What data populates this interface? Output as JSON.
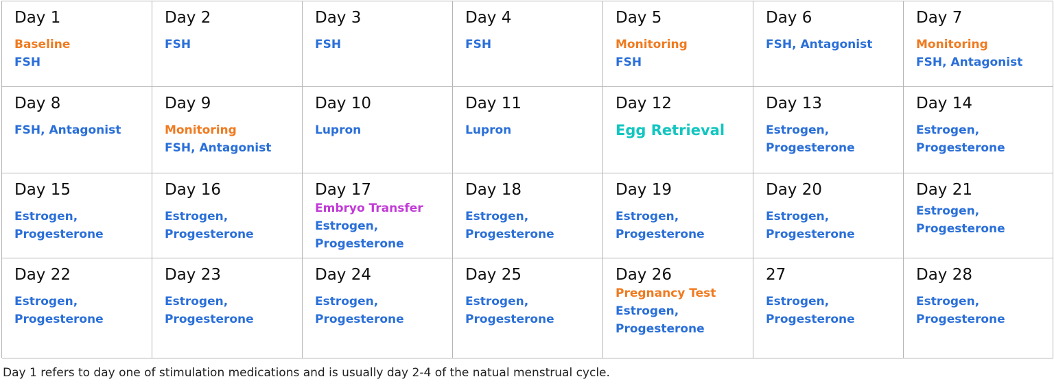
{
  "colors": {
    "med": "#2a6fd8",
    "appointment": "#f07a1f",
    "retrieval": "#12c6c0",
    "transfer": "#c13ad6"
  },
  "calendar": {
    "days": [
      {
        "day": "Day 1",
        "events": [
          {
            "text": "Baseline",
            "kind": "appointment"
          },
          {
            "text": "FSH",
            "kind": "med"
          }
        ]
      },
      {
        "day": "Day 2",
        "events": [
          {
            "text": "FSH",
            "kind": "med"
          }
        ]
      },
      {
        "day": "Day 3",
        "events": [
          {
            "text": "FSH",
            "kind": "med"
          }
        ]
      },
      {
        "day": "Day 4",
        "events": [
          {
            "text": "FSH",
            "kind": "med"
          }
        ]
      },
      {
        "day": "Day 5",
        "events": [
          {
            "text": "Monitoring",
            "kind": "appointment"
          },
          {
            "text": "FSH",
            "kind": "med"
          }
        ]
      },
      {
        "day": "Day 6",
        "events": [
          {
            "text": "FSH, Antagonist",
            "kind": "med"
          }
        ]
      },
      {
        "day": "Day 7",
        "events": [
          {
            "text": "Monitoring",
            "kind": "appointment"
          },
          {
            "text": "FSH, Antagonist",
            "kind": "med"
          }
        ]
      },
      {
        "day": "Day 8",
        "events": [
          {
            "text": "FSH, Antagonist",
            "kind": "med"
          }
        ]
      },
      {
        "day": "Day 9",
        "events": [
          {
            "text": "Monitoring",
            "kind": "appointment"
          },
          {
            "text": "FSH, Antagonist",
            "kind": "med"
          }
        ]
      },
      {
        "day": "Day 10",
        "events": [
          {
            "text": "Lupron",
            "kind": "med"
          }
        ]
      },
      {
        "day": "Day 11",
        "events": [
          {
            "text": "Lupron",
            "kind": "med"
          }
        ]
      },
      {
        "day": "Day 12",
        "events": [
          {
            "text": "Egg Retrieval",
            "kind": "retrieval"
          }
        ]
      },
      {
        "day": "Day 13",
        "events": [
          {
            "text": "Estrogen,",
            "kind": "med"
          },
          {
            "text": "Progesterone",
            "kind": "med"
          }
        ]
      },
      {
        "day": "Day 14",
        "events": [
          {
            "text": "Estrogen,",
            "kind": "med"
          },
          {
            "text": "Progesterone",
            "kind": "med"
          }
        ]
      },
      {
        "day": "Day 15",
        "events": [
          {
            "text": "Estrogen,",
            "kind": "med"
          },
          {
            "text": "Progesterone",
            "kind": "med"
          }
        ]
      },
      {
        "day": "Day 16",
        "events": [
          {
            "text": "Estrogen,",
            "kind": "med"
          },
          {
            "text": "Progesterone",
            "kind": "med"
          }
        ]
      },
      {
        "day": "Day 17",
        "events": [
          {
            "text": "Embryo Transfer",
            "kind": "transfer"
          },
          {
            "text": "Estrogen,",
            "kind": "med"
          },
          {
            "text": "Progesterone",
            "kind": "med"
          }
        ]
      },
      {
        "day": "Day 18",
        "events": [
          {
            "text": "Estrogen,",
            "kind": "med"
          },
          {
            "text": "Progesterone",
            "kind": "med"
          }
        ]
      },
      {
        "day": "Day 19",
        "events": [
          {
            "text": "Estrogen,",
            "kind": "med"
          },
          {
            "text": "Progesterone",
            "kind": "med"
          }
        ]
      },
      {
        "day": "Day 20",
        "events": [
          {
            "text": "Estrogen,",
            "kind": "med"
          },
          {
            "text": "Progesterone",
            "kind": "med"
          }
        ]
      },
      {
        "day": "Day 21",
        "events": [
          {
            "text": "Estrogen,",
            "kind": "med"
          },
          {
            "text": "Progesterone",
            "kind": "med"
          }
        ]
      },
      {
        "day": "Day 22",
        "events": [
          {
            "text": "Estrogen,",
            "kind": "med"
          },
          {
            "text": "Progesterone",
            "kind": "med"
          }
        ]
      },
      {
        "day": "Day 23",
        "events": [
          {
            "text": "Estrogen,",
            "kind": "med"
          },
          {
            "text": "Progesterone",
            "kind": "med"
          }
        ]
      },
      {
        "day": "Day 24",
        "events": [
          {
            "text": "Estrogen,",
            "kind": "med"
          },
          {
            "text": "Progesterone",
            "kind": "med"
          }
        ]
      },
      {
        "day": "Day 25",
        "events": [
          {
            "text": "Estrogen,",
            "kind": "med"
          },
          {
            "text": "Progesterone",
            "kind": "med"
          }
        ]
      },
      {
        "day": "Day 26",
        "events": [
          {
            "text": "Pregnancy Test",
            "kind": "appointment"
          },
          {
            "text": "Estrogen,",
            "kind": "med"
          },
          {
            "text": "Progesterone",
            "kind": "med"
          }
        ]
      },
      {
        "day": "27",
        "events": [
          {
            "text": "Estrogen,",
            "kind": "med"
          },
          {
            "text": "Progesterone",
            "kind": "med"
          }
        ]
      },
      {
        "day": "Day 28",
        "events": [
          {
            "text": "Estrogen,",
            "kind": "med"
          },
          {
            "text": "Progesterone",
            "kind": "med"
          }
        ]
      }
    ]
  },
  "footnote": "Day 1 refers to day one of stimulation medications and is usually day 2-4 of the natual menstrual cycle."
}
